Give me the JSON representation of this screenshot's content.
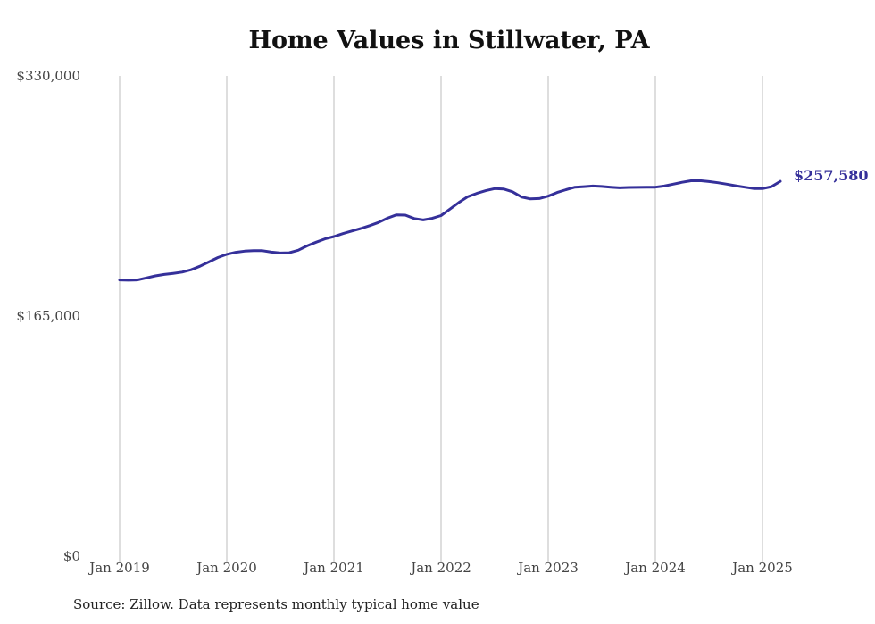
{
  "chart_data": {
    "type": "line",
    "title": "Home Values in Stillwater, PA",
    "xlabel": "",
    "ylabel": "",
    "ylim": [
      0,
      330000
    ],
    "y_ticks": [
      {
        "value": 0,
        "label": "$0"
      },
      {
        "value": 165000,
        "label": "$165,000"
      },
      {
        "value": 330000,
        "label": "$330,000"
      }
    ],
    "x_ticks": [
      {
        "value": 2019,
        "label": "Jan 2019"
      },
      {
        "value": 2020,
        "label": "Jan 2020"
      },
      {
        "value": 2021,
        "label": "Jan 2021"
      },
      {
        "value": 2022,
        "label": "Jan 2022"
      },
      {
        "value": 2023,
        "label": "Jan 2023"
      },
      {
        "value": 2024,
        "label": "Jan 2024"
      },
      {
        "value": 2025,
        "label": "Jan 2025"
      }
    ],
    "grid": "vertical lines at x ticks",
    "series": [
      {
        "color": "#35309a",
        "end_label": "$257,580",
        "x": [
          "2019-01",
          "2019-02",
          "2019-03",
          "2019-04",
          "2019-05",
          "2019-06",
          "2019-07",
          "2019-08",
          "2019-09",
          "2019-10",
          "2019-11",
          "2019-12",
          "2020-01",
          "2020-02",
          "2020-03",
          "2020-04",
          "2020-05",
          "2020-06",
          "2020-07",
          "2020-08",
          "2020-09",
          "2020-10",
          "2020-11",
          "2020-12",
          "2021-01",
          "2021-02",
          "2021-03",
          "2021-04",
          "2021-05",
          "2021-06",
          "2021-07",
          "2021-08",
          "2021-09",
          "2021-10",
          "2021-11",
          "2021-12",
          "2022-01",
          "2022-02",
          "2022-03",
          "2022-04",
          "2022-05",
          "2022-06",
          "2022-07",
          "2022-08",
          "2022-09",
          "2022-10",
          "2022-11",
          "2022-12",
          "2023-01",
          "2023-02",
          "2023-03",
          "2023-04",
          "2023-05",
          "2023-06",
          "2023-07",
          "2023-08",
          "2023-09",
          "2023-10",
          "2023-11",
          "2023-12",
          "2024-01",
          "2024-02",
          "2024-03",
          "2024-04",
          "2024-05",
          "2024-06",
          "2024-07",
          "2024-08",
          "2024-09",
          "2024-10",
          "2024-11",
          "2024-12",
          "2025-01",
          "2025-02",
          "2025-03"
        ],
        "values": [
          189800,
          189600,
          189800,
          191200,
          192600,
          193600,
          194300,
          195200,
          196800,
          199200,
          202200,
          205200,
          207400,
          208800,
          209600,
          209900,
          209900,
          208900,
          208300,
          208500,
          210200,
          213200,
          215700,
          218000,
          219600,
          221600,
          223400,
          225100,
          227100,
          229300,
          232200,
          234500,
          234300,
          232000,
          231000,
          232100,
          234000,
          238500,
          243000,
          247000,
          249300,
          251100,
          252500,
          252300,
          250400,
          246800,
          245500,
          245700,
          247400,
          249900,
          251800,
          253500,
          253900,
          254300,
          254000,
          253500,
          253100,
          253300,
          253400,
          253500,
          253500,
          254300,
          255600,
          256900,
          257900,
          258000,
          257400,
          256600,
          255600,
          254500,
          253500,
          252600,
          252500,
          253900,
          257580
        ]
      }
    ]
  },
  "source": "Source: Zillow. Data represents monthly typical home value"
}
